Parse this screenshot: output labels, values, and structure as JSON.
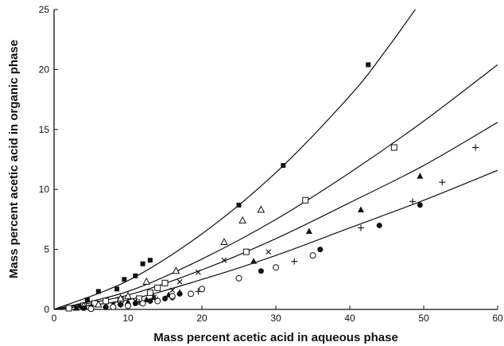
{
  "chart_data": {
    "type": "scatter",
    "title": "",
    "xlabel": "Mass percent acetic acid in aqueous phase",
    "ylabel": "Mass percent acetic acid in organic phase",
    "xlim": [
      0,
      60
    ],
    "ylim": [
      0,
      25
    ],
    "x_ticks": [
      0,
      10,
      20,
      30,
      40,
      50,
      60
    ],
    "y_ticks": [
      0,
      5,
      10,
      15,
      20,
      25
    ],
    "grid": false,
    "legend": "none",
    "series": [
      {
        "marker": "filled-square",
        "points": [
          [
            2,
            0.1
          ],
          [
            3.5,
            0.3
          ],
          [
            4.5,
            0.8
          ],
          [
            6,
            1.5
          ],
          [
            8.5,
            1.7
          ],
          [
            9.5,
            2.5
          ],
          [
            11,
            2.8
          ],
          [
            12,
            3.8
          ],
          [
            13,
            4.1
          ],
          [
            25,
            8.7
          ],
          [
            31,
            12.0
          ],
          [
            42.5,
            20.4
          ]
        ],
        "curve": [
          [
            0,
            0
          ],
          [
            10,
            2.4
          ],
          [
            20,
            6.3
          ],
          [
            30,
            11.4
          ],
          [
            40,
            17.8
          ],
          [
            45,
            21.7
          ],
          [
            50,
            26
          ]
        ]
      },
      {
        "marker": "open-square",
        "points": [
          [
            2,
            0.1
          ],
          [
            4,
            0.3
          ],
          [
            5.5,
            0.5
          ],
          [
            7,
            0.7
          ],
          [
            9,
            0.8
          ],
          [
            11.5,
            0.9
          ],
          [
            13,
            1.4
          ],
          [
            14,
            1.8
          ],
          [
            15,
            2.2
          ],
          [
            26,
            4.8
          ],
          [
            34,
            9.1
          ],
          [
            46,
            13.5
          ]
        ],
        "curve": [
          [
            0,
            0
          ],
          [
            10,
            1.5
          ],
          [
            20,
            4.2
          ],
          [
            30,
            7.5
          ],
          [
            40,
            11.4
          ],
          [
            50,
            15.7
          ],
          [
            60,
            20.4
          ]
        ]
      },
      {
        "marker": "open-triangle",
        "points": [
          [
            4,
            0.3
          ],
          [
            6,
            0.4
          ],
          [
            9,
            0.9
          ],
          [
            10,
            1.1
          ],
          [
            12.5,
            2.3
          ],
          [
            16.5,
            3.2
          ],
          [
            23,
            5.6
          ],
          [
            25.5,
            7.4
          ],
          [
            28,
            8.3
          ]
        ]
      },
      {
        "marker": "x",
        "points": [
          [
            3,
            0.1
          ],
          [
            5,
            0.2
          ],
          [
            8,
            0.4
          ],
          [
            11,
            0.7
          ],
          [
            13.5,
            1.0
          ],
          [
            16,
            1.6
          ],
          [
            17,
            2.3
          ],
          [
            19.5,
            3.1
          ],
          [
            23,
            4.1
          ],
          [
            29,
            4.8
          ]
        ]
      },
      {
        "marker": "filled-triangle",
        "points": [
          [
            3,
            0.1
          ],
          [
            5,
            0.2
          ],
          [
            8,
            0.4
          ],
          [
            10,
            0.6
          ],
          [
            12.5,
            0.8
          ],
          [
            13.5,
            1.0
          ],
          [
            15.5,
            1.2
          ],
          [
            17,
            1.4
          ],
          [
            27,
            4.0
          ],
          [
            34.5,
            6.5
          ],
          [
            41.5,
            8.3
          ],
          [
            49.5,
            11.1
          ]
        ],
        "curve": [
          [
            0,
            0
          ],
          [
            10,
            1.2
          ],
          [
            20,
            3.3
          ],
          [
            30,
            5.9
          ],
          [
            40,
            8.9
          ],
          [
            50,
            12.0
          ],
          [
            60,
            15.6
          ]
        ]
      },
      {
        "marker": "plus",
        "points": [
          [
            5,
            0.1
          ],
          [
            7,
            0.2
          ],
          [
            9,
            0.4
          ],
          [
            11.5,
            0.6
          ],
          [
            14,
            0.8
          ],
          [
            16,
            1.0
          ],
          [
            19.5,
            1.5
          ],
          [
            32.5,
            4.0
          ],
          [
            41.5,
            6.8
          ],
          [
            48.5,
            9.0
          ],
          [
            52.5,
            10.6
          ],
          [
            57,
            13.5
          ]
        ]
      },
      {
        "marker": "filled-circle",
        "points": [
          [
            4,
            0.1
          ],
          [
            7,
            0.2
          ],
          [
            9,
            0.4
          ],
          [
            11,
            0.5
          ],
          [
            13,
            0.7
          ],
          [
            15,
            0.9
          ],
          [
            16,
            1.0
          ],
          [
            17,
            1.3
          ],
          [
            28,
            3.2
          ],
          [
            36,
            5.0
          ],
          [
            44,
            7.0
          ],
          [
            49.5,
            8.7
          ]
        ],
        "curve": [
          [
            0,
            0
          ],
          [
            10,
            0.8
          ],
          [
            20,
            2.5
          ],
          [
            30,
            4.5
          ],
          [
            40,
            6.8
          ],
          [
            50,
            9.1
          ],
          [
            60,
            11.6
          ]
        ]
      },
      {
        "marker": "open-circle",
        "points": [
          [
            5,
            0.05
          ],
          [
            8,
            0.2
          ],
          [
            10,
            0.3
          ],
          [
            12,
            0.5
          ],
          [
            14,
            0.7
          ],
          [
            16,
            1.1
          ],
          [
            18.5,
            1.3
          ],
          [
            20,
            1.7
          ],
          [
            25,
            2.6
          ],
          [
            30,
            3.5
          ],
          [
            35,
            4.5
          ]
        ]
      }
    ]
  }
}
